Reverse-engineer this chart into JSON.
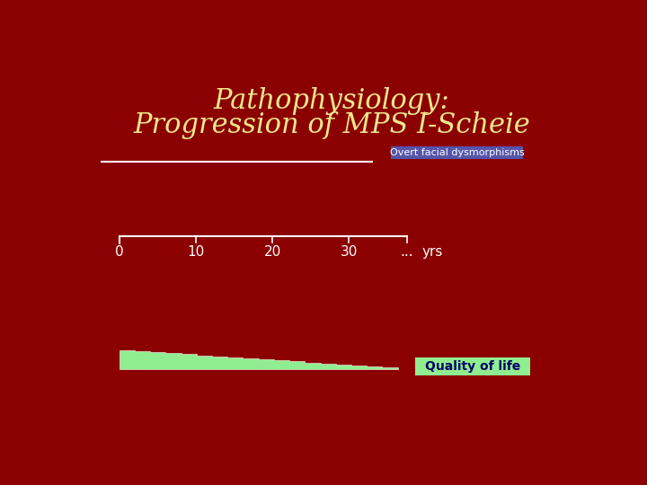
{
  "title_line1": "Pathophysiology:",
  "title_line2": "Progression of MPS I-Scheie",
  "title_color": "#F0E68C",
  "background_color": "#8B0000",
  "overt_label": "Overt facial dysmorphisms",
  "overt_label_bg": "#5555AA",
  "overt_label_color": "#FFFFFF",
  "timeline_yrs": "yrs",
  "timeline_color": "#FFFFFF",
  "line_color": "#FFFFFF",
  "quality_label": "Quality of life",
  "quality_bg": "#90EE90",
  "quality_text_color": "#000066",
  "title_fontsize": 22,
  "tick_fontsize": 11,
  "overt_fontsize": 8,
  "qol_fontsize": 10
}
